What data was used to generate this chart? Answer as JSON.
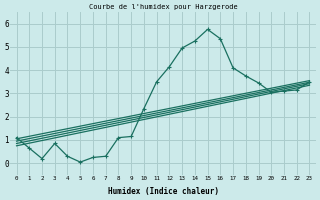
{
  "title": "Courbe de l'humidex pour Harzgerode",
  "xlabel": "Humidex (Indice chaleur)",
  "bg_color": "#cceaea",
  "grid_color": "#aacccc",
  "line_color": "#1a7060",
  "x_hours": [
    0,
    1,
    2,
    3,
    4,
    5,
    6,
    7,
    8,
    9,
    10,
    11,
    12,
    13,
    14,
    15,
    16,
    17,
    18,
    19,
    20,
    21,
    22,
    23
  ],
  "y_humidex": [
    1.1,
    0.65,
    0.2,
    0.85,
    0.3,
    0.05,
    0.25,
    0.3,
    1.1,
    1.15,
    2.35,
    3.5,
    4.15,
    4.95,
    5.25,
    5.75,
    5.35,
    4.1,
    3.75,
    3.45,
    3.05,
    3.1,
    3.15,
    3.5
  ],
  "ylim": [
    -0.5,
    6.5
  ],
  "xlim": [
    -0.5,
    23.5
  ],
  "yticks": [
    0,
    1,
    2,
    3,
    4,
    5,
    6
  ],
  "xticks": [
    0,
    1,
    2,
    3,
    4,
    5,
    6,
    7,
    8,
    9,
    10,
    11,
    12,
    13,
    14,
    15,
    16,
    17,
    18,
    19,
    20,
    21,
    22,
    23
  ],
  "trend_lines": [
    {
      "x0": 0.0,
      "y0": 0.75,
      "x1": 23.0,
      "y1": 3.35
    },
    {
      "x0": 0.0,
      "y0": 0.85,
      "x1": 23.0,
      "y1": 3.42
    },
    {
      "x0": 0.0,
      "y0": 0.95,
      "x1": 23.0,
      "y1": 3.48
    },
    {
      "x0": 0.0,
      "y0": 1.05,
      "x1": 23.0,
      "y1": 3.55
    }
  ]
}
